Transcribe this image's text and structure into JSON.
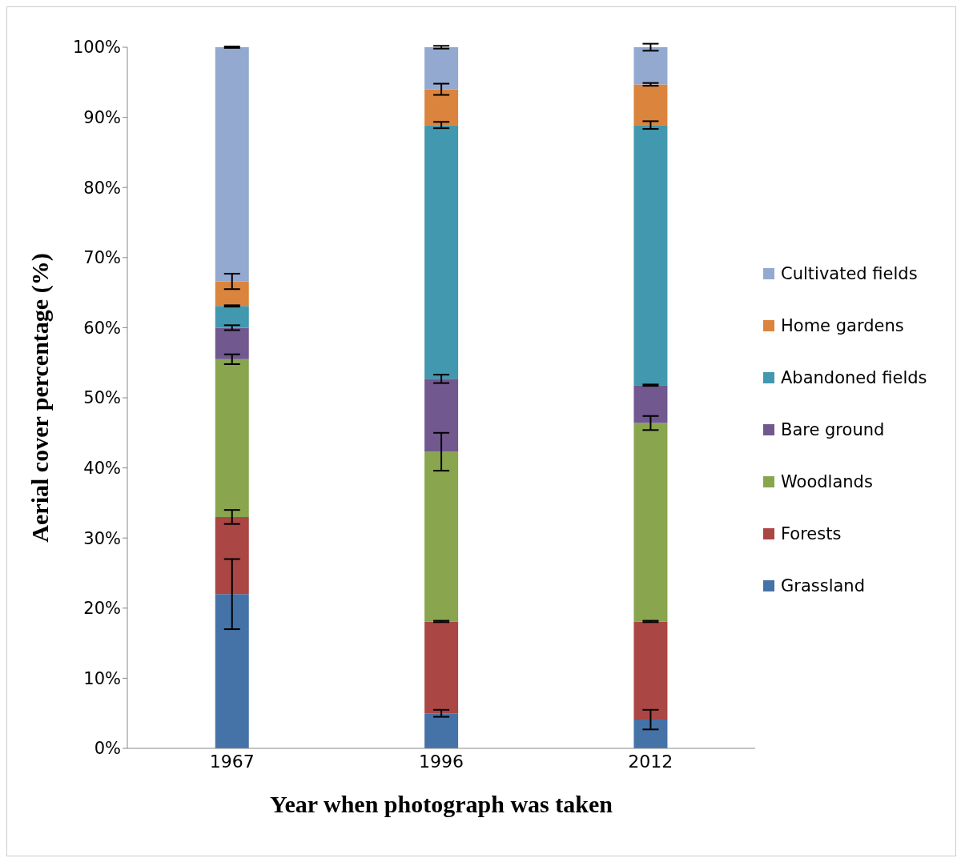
{
  "chart_data": {
    "type": "bar",
    "stacked": true,
    "xlabel": "Year when photograph was taken",
    "ylabel": "Aerial cover percentage (%)",
    "categories": [
      "1967",
      "1996",
      "2012"
    ],
    "series": [
      {
        "name": "Grassland",
        "color": "#4572a7",
        "values": [
          22,
          5,
          4.1
        ],
        "errors": [
          5,
          0.5,
          1.4
        ]
      },
      {
        "name": "Forests",
        "color": "#aa4643",
        "values": [
          11,
          13.1,
          14
        ],
        "errors": [
          1,
          0.1,
          0.1
        ]
      },
      {
        "name": "Woodlands",
        "color": "#89a54e",
        "values": [
          22.5,
          24.2,
          28.3
        ],
        "errors": [
          0.7,
          2.7,
          1
        ]
      },
      {
        "name": "Bare ground",
        "color": "#71588f",
        "values": [
          4.5,
          10.4,
          5.4
        ],
        "errors": [
          0.35,
          0.6,
          0.1
        ]
      },
      {
        "name": "Abandoned fields",
        "color": "#4198af",
        "values": [
          3.1,
          36.2,
          37.1
        ],
        "errors": [
          0.1,
          0.45,
          0.55
        ]
      },
      {
        "name": "Home gardens",
        "color": "#db843d",
        "values": [
          3.5,
          5.1,
          5.8
        ],
        "errors": [
          1.1,
          0.8,
          0.2
        ]
      },
      {
        "name": "Cultivated fields",
        "color": "#93a9cf",
        "values": [
          33.4,
          6,
          5.3
        ],
        "errors": [
          0.1,
          0.2,
          0.5
        ]
      }
    ],
    "ylim": [
      0,
      100
    ],
    "yticks": [
      {
        "value": 0,
        "label": "0%"
      },
      {
        "value": 10,
        "label": "10%"
      },
      {
        "value": 20,
        "label": "20%"
      },
      {
        "value": 30,
        "label": "30%"
      },
      {
        "value": 40,
        "label": "40%"
      },
      {
        "value": 50,
        "label": "50%"
      },
      {
        "value": 60,
        "label": "60%"
      },
      {
        "value": 70,
        "label": "70%"
      },
      {
        "value": 80,
        "label": "80%"
      },
      {
        "value": 90,
        "label": "90%"
      },
      {
        "value": 100,
        "label": "100%"
      }
    ],
    "grid": false,
    "legend": "right"
  }
}
